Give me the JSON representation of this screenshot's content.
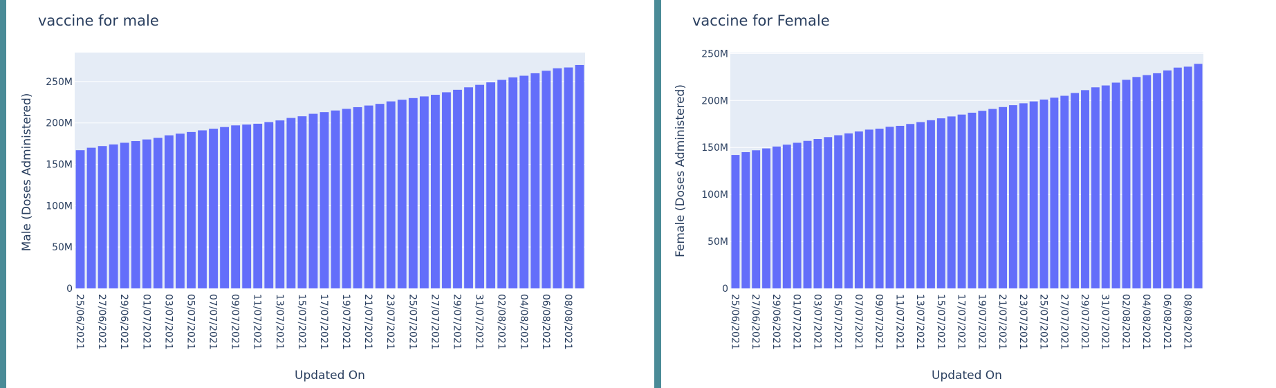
{
  "chart_data": [
    {
      "type": "bar",
      "title": "vaccine for male",
      "xlabel": "Updated On",
      "ylabel": "Male (Doses Administered)",
      "ylim": [
        0,
        285000000
      ],
      "yticks": [
        0,
        50000000,
        100000000,
        150000000,
        200000000,
        250000000
      ],
      "ytick_labels": [
        "0",
        "50M",
        "100M",
        "150M",
        "200M",
        "250M"
      ],
      "color": "#636efa",
      "categories": [
        "25/06/2021",
        "26/06/2021",
        "27/06/2021",
        "28/06/2021",
        "29/06/2021",
        "30/06/2021",
        "01/07/2021",
        "02/07/2021",
        "03/07/2021",
        "04/07/2021",
        "05/07/2021",
        "06/07/2021",
        "07/07/2021",
        "08/07/2021",
        "09/07/2021",
        "10/07/2021",
        "11/07/2021",
        "12/07/2021",
        "13/07/2021",
        "14/07/2021",
        "15/07/2021",
        "16/07/2021",
        "17/07/2021",
        "18/07/2021",
        "19/07/2021",
        "20/07/2021",
        "21/07/2021",
        "22/07/2021",
        "23/07/2021",
        "24/07/2021",
        "25/07/2021",
        "26/07/2021",
        "27/07/2021",
        "28/07/2021",
        "29/07/2021",
        "30/07/2021",
        "31/07/2021",
        "01/08/2021",
        "02/08/2021",
        "03/08/2021",
        "04/08/2021",
        "05/08/2021",
        "06/08/2021",
        "07/08/2021",
        "08/08/2021",
        "09/08/2021"
      ],
      "values": [
        167000000,
        170000000,
        172000000,
        174000000,
        176000000,
        178000000,
        180000000,
        182000000,
        185000000,
        187000000,
        189000000,
        191000000,
        193000000,
        195000000,
        197000000,
        198000000,
        199000000,
        201000000,
        203000000,
        206000000,
        208000000,
        211000000,
        213000000,
        215000000,
        217000000,
        219000000,
        221000000,
        223000000,
        226000000,
        228000000,
        230000000,
        232000000,
        234000000,
        237000000,
        240000000,
        243000000,
        246000000,
        249000000,
        252000000,
        255000000,
        257000000,
        260000000,
        263000000,
        266000000,
        267000000,
        270000000
      ],
      "xtick_labels": [
        "25/06/2021",
        "27/06/2021",
        "29/06/2021",
        "01/07/2021",
        "03/07/2021",
        "05/07/2021",
        "07/07/2021",
        "09/07/2021",
        "11/07/2021",
        "13/07/2021",
        "15/07/2021",
        "17/07/2021",
        "19/07/2021",
        "21/07/2021",
        "23/07/2021",
        "25/07/2021",
        "27/07/2021",
        "29/07/2021",
        "31/07/2021",
        "02/08/2021",
        "04/08/2021",
        "06/08/2021",
        "08/08/2021"
      ],
      "grid": true
    },
    {
      "type": "bar",
      "title": "vaccine for Female",
      "xlabel": "Updated On",
      "ylabel": "Female (Doses Administered)",
      "ylim": [
        0,
        251000000
      ],
      "yticks": [
        0,
        50000000,
        100000000,
        150000000,
        200000000,
        250000000
      ],
      "ytick_labels": [
        "0",
        "50M",
        "100M",
        "150M",
        "200M",
        "250M"
      ],
      "color": "#636efa",
      "categories": [
        "25/06/2021",
        "26/06/2021",
        "27/06/2021",
        "28/06/2021",
        "29/06/2021",
        "30/06/2021",
        "01/07/2021",
        "02/07/2021",
        "03/07/2021",
        "04/07/2021",
        "05/07/2021",
        "06/07/2021",
        "07/07/2021",
        "08/07/2021",
        "09/07/2021",
        "10/07/2021",
        "11/07/2021",
        "12/07/2021",
        "13/07/2021",
        "14/07/2021",
        "15/07/2021",
        "16/07/2021",
        "17/07/2021",
        "18/07/2021",
        "19/07/2021",
        "20/07/2021",
        "21/07/2021",
        "22/07/2021",
        "23/07/2021",
        "24/07/2021",
        "25/07/2021",
        "26/07/2021",
        "27/07/2021",
        "28/07/2021",
        "29/07/2021",
        "30/07/2021",
        "31/07/2021",
        "01/08/2021",
        "02/08/2021",
        "03/08/2021",
        "04/08/2021",
        "05/08/2021",
        "06/08/2021",
        "07/08/2021",
        "08/08/2021",
        "09/08/2021"
      ],
      "values": [
        142000000,
        145000000,
        147000000,
        149000000,
        151000000,
        153000000,
        155000000,
        157000000,
        159000000,
        161000000,
        163000000,
        165000000,
        167000000,
        169000000,
        170000000,
        172000000,
        173000000,
        175000000,
        177000000,
        179000000,
        181000000,
        183000000,
        185000000,
        187000000,
        189000000,
        191000000,
        193000000,
        195000000,
        197000000,
        199000000,
        201000000,
        203000000,
        205000000,
        208000000,
        211000000,
        214000000,
        216000000,
        219000000,
        222000000,
        225000000,
        227000000,
        229000000,
        232000000,
        235000000,
        236000000,
        239000000
      ],
      "xtick_labels": [
        "25/06/2021",
        "27/06/2021",
        "29/06/2021",
        "01/07/2021",
        "03/07/2021",
        "05/07/2021",
        "07/07/2021",
        "09/07/2021",
        "11/07/2021",
        "13/07/2021",
        "15/07/2021",
        "17/07/2021",
        "19/07/2021",
        "21/07/2021",
        "23/07/2021",
        "25/07/2021",
        "27/07/2021",
        "29/07/2021",
        "31/07/2021",
        "02/08/2021",
        "04/08/2021",
        "06/08/2021",
        "08/08/2021"
      ],
      "grid": true
    }
  ]
}
